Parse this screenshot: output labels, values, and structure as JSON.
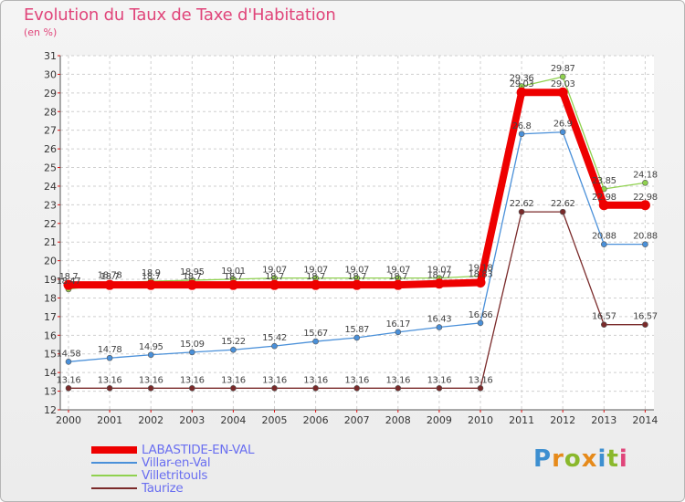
{
  "header": {
    "title": "Evolution du Taux de Taxe d'Habitation",
    "unit": "(en %)"
  },
  "colors": {
    "title": "#e0457a",
    "legend_text": "#6a6ff0",
    "grid": "#cfcfcf",
    "axis": "#555555",
    "logo_letters": [
      "#3d8fd0",
      "#e68a1a",
      "#8ab82c",
      "#e68a1a",
      "#3d8fd0",
      "#8ab82c",
      "#e0457a"
    ]
  },
  "logo": {
    "text": "Proxiti"
  },
  "chart_data": {
    "type": "line",
    "title": "Evolution du Taux de Taxe d'Habitation",
    "ylabel": "(en %)",
    "xlabel": "",
    "x": [
      2000,
      2001,
      2002,
      2003,
      2004,
      2005,
      2006,
      2007,
      2008,
      2009,
      2010,
      2011,
      2012,
      2013,
      2014
    ],
    "ylim": [
      12,
      31
    ],
    "yticks": [
      12,
      13,
      14,
      15,
      16,
      17,
      18,
      19,
      20,
      21,
      22,
      23,
      24,
      25,
      26,
      27,
      28,
      29,
      30,
      31
    ],
    "grid": true,
    "legend_position": "bottom-left",
    "series": [
      {
        "name": "LABASTIDE-EN-VAL",
        "color": "#ee0000",
        "width": 8,
        "dot_radius": 5.5,
        "values": [
          18.7,
          18.7,
          18.7,
          18.7,
          18.7,
          18.7,
          18.7,
          18.7,
          18.7,
          18.77,
          18.83,
          29.03,
          29.03,
          22.98,
          22.98
        ],
        "labels": [
          "18.7",
          "18.7",
          "18.7",
          "18.7",
          "18.7",
          "18.7",
          "18.7",
          "18.7",
          "18.7",
          "18.77",
          "18.83",
          "29.03",
          "29.03",
          "22.98",
          "22.98"
        ]
      },
      {
        "name": "Villar-en-Val",
        "color": "#4a90d9",
        "width": 1.3,
        "dot_radius": 3,
        "values": [
          14.58,
          14.78,
          14.95,
          15.09,
          15.22,
          15.42,
          15.67,
          15.87,
          16.17,
          16.43,
          16.66,
          26.8,
          26.9,
          20.88,
          20.88
        ],
        "labels": [
          "14.58",
          "14.78",
          "14.95",
          "15.09",
          "15.22",
          "15.42",
          "15.67",
          "15.87",
          "16.17",
          "16.43",
          "16.66",
          "26.8",
          "26.9",
          "20.88",
          "20.88"
        ]
      },
      {
        "name": "Villetritouls",
        "color": "#8fd14f",
        "width": 1.3,
        "dot_radius": 3,
        "values": [
          18.47,
          18.78,
          18.9,
          18.95,
          19.01,
          19.07,
          19.07,
          19.07,
          19.07,
          19.07,
          19.18,
          29.36,
          29.87,
          23.85,
          24.18
        ],
        "labels": [
          "18.47",
          "18.78",
          "18.9",
          "18.95",
          "19.01",
          "19.07",
          "19.07",
          "19.07",
          "19.07",
          "19.07",
          "19.18",
          "29.36",
          "29.87",
          "23.85",
          "24.18"
        ]
      },
      {
        "name": "Taurize",
        "color": "#7a2a2a",
        "width": 1.3,
        "dot_radius": 3,
        "values": [
          13.16,
          13.16,
          13.16,
          13.16,
          13.16,
          13.16,
          13.16,
          13.16,
          13.16,
          13.16,
          13.16,
          22.62,
          22.62,
          16.57,
          16.57
        ],
        "labels": [
          "13.16",
          "13.16",
          "13.16",
          "13.16",
          "13.16",
          "13.16",
          "13.16",
          "13.16",
          "13.16",
          "13.16",
          "13.16",
          "22.62",
          "22.62",
          "16.57",
          "16.57"
        ]
      }
    ]
  }
}
